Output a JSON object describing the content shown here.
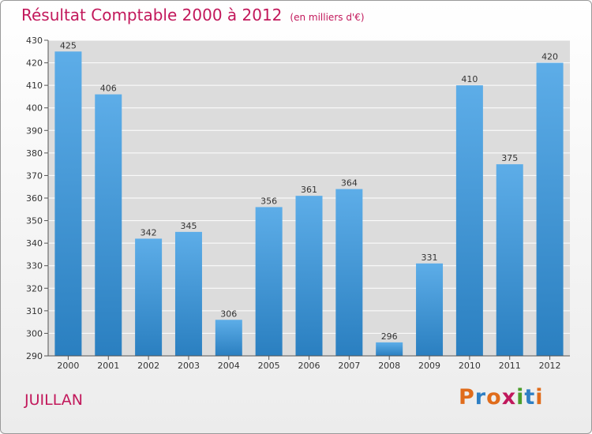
{
  "header": {
    "title": "Résultat Comptable 2000 à 2012",
    "unit": "(en milliers d'€)"
  },
  "footer": {
    "commune": "JUILLAN",
    "brand": "Proxiti"
  },
  "colors": {
    "title": "#c2185b",
    "bar_light": "#5dade8",
    "bar_dark": "#2a7fc0",
    "brand_letters": [
      "#e06c1b",
      "#2e7fc4",
      "#e06c1b",
      "#c0185c",
      "#4b9e2b",
      "#2e7fc4",
      "#e06c1b"
    ]
  },
  "chart_data": {
    "type": "bar",
    "title": "Résultat Comptable 2000 à 2012",
    "ylabel": "en milliers d'€",
    "categories": [
      "2000",
      "2001",
      "2002",
      "2003",
      "2004",
      "2005",
      "2006",
      "2007",
      "2008",
      "2009",
      "2010",
      "2011",
      "2012"
    ],
    "values": [
      425,
      406,
      342,
      345,
      306,
      356,
      361,
      364,
      296,
      331,
      410,
      375,
      420
    ],
    "ylim": [
      290,
      430
    ],
    "yticks": [
      290,
      300,
      310,
      320,
      330,
      340,
      350,
      360,
      370,
      380,
      390,
      400,
      410,
      420,
      430
    ],
    "grid": true
  }
}
